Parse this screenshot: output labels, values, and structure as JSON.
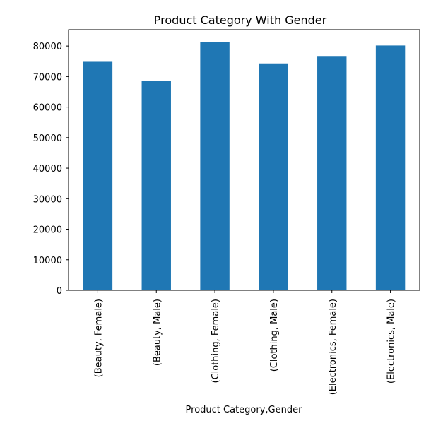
{
  "chart_data": {
    "type": "bar",
    "title": "Product Category With Gender",
    "xlabel": "Product Category,Gender",
    "ylabel": "",
    "categories": [
      "(Beauty, Female)",
      "(Beauty, Male)",
      "(Clothing, Female)",
      "(Clothing, Male)",
      "(Electronics, Female)",
      "(Electronics, Male)"
    ],
    "values": [
      74830,
      68610,
      81275,
      74305,
      76735,
      80170
    ],
    "ylim": [
      0,
      85350
    ],
    "yticks": [
      0,
      10000,
      20000,
      30000,
      40000,
      50000,
      60000,
      70000,
      80000
    ],
    "bar_color": "#1f77b4",
    "grid": false,
    "legend": "none"
  }
}
